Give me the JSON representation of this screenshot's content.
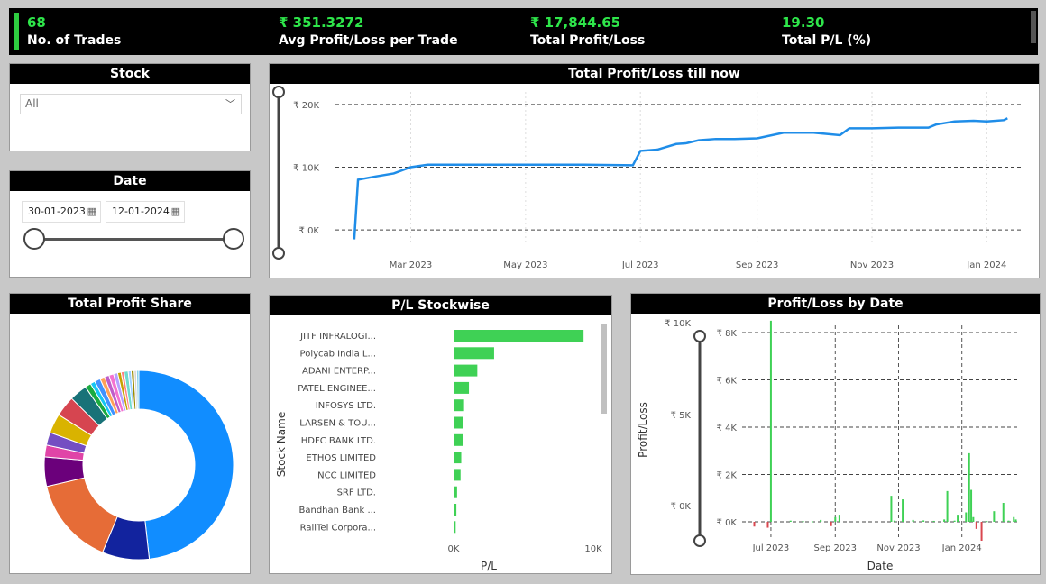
{
  "kpis": [
    {
      "value": "68",
      "label": "No. of Trades"
    },
    {
      "value": "₹ 351.3272",
      "label": "Avg Profit/Loss per Trade"
    },
    {
      "value": "₹ 17,844.65",
      "label": "Total Profit/Loss"
    },
    {
      "value": "19.30",
      "label": "Total P/L (%)"
    }
  ],
  "stock_filter": {
    "title": "Stock",
    "selected": "All"
  },
  "date_filter": {
    "title": "Date",
    "start": "30-01-2023",
    "end": "12-01-2024"
  },
  "colors": {
    "accent_green": "#2ee64a",
    "line_blue": "#1f8de8",
    "bar_green": "#3fd155",
    "loss_red": "#d9474f"
  },
  "chart_data": [
    {
      "type": "line",
      "title": "Total Profit/Loss till now",
      "x_ticks": [
        "Mar 2023",
        "May 2023",
        "Jul 2023",
        "Sep 2023",
        "Nov 2023",
        "Jan 2024"
      ],
      "y_ticks": [
        "₹ 20K",
        "₹ 10K",
        "₹ 0K"
      ],
      "ylim": [
        -2000,
        22000
      ],
      "grid": true,
      "series": [
        {
          "x": [
            "2023-01-30",
            "2023-02-01",
            "2023-02-10",
            "2023-02-20",
            "2023-03-01",
            "2023-03-10",
            "2023-04-01",
            "2023-05-01",
            "2023-06-01",
            "2023-06-27",
            "2023-07-01",
            "2023-07-10",
            "2023-07-20",
            "2023-07-25",
            "2023-08-01",
            "2023-08-10",
            "2023-08-20",
            "2023-09-01",
            "2023-09-15",
            "2023-10-01",
            "2023-10-15",
            "2023-10-20",
            "2023-11-01",
            "2023-11-15",
            "2023-12-01",
            "2023-12-05",
            "2023-12-15",
            "2023-12-25",
            "2024-01-01",
            "2024-01-10",
            "2024-01-12"
          ],
          "y": [
            -1500,
            8000,
            8500,
            9000,
            10000,
            10400,
            10400,
            10400,
            10400,
            10300,
            12600,
            12800,
            13700,
            13800,
            14300,
            14500,
            14500,
            14600,
            15500,
            15500,
            15100,
            16200,
            16200,
            16300,
            16300,
            16800,
            17300,
            17400,
            17300,
            17500,
            17800
          ]
        }
      ]
    },
    {
      "type": "pie",
      "title": "Total Profit Share",
      "values": [
        48,
        8,
        15,
        5,
        2,
        2.2,
        3.3,
        3.5,
        3,
        1,
        0.8,
        1,
        0.8,
        0.8,
        0.8,
        0.7,
        0.6,
        0.5,
        0.7,
        0.5,
        0.5,
        0.4,
        0.4
      ],
      "colors": [
        "#118dff",
        "#12239e",
        "#e66c37",
        "#6b007b",
        "#e044a7",
        "#744ec2",
        "#d9b300",
        "#d64550",
        "#197278",
        "#1aab40",
        "#15c6f4",
        "#4092ff",
        "#ffa058",
        "#be5dc9",
        "#f472d0",
        "#b5a1ff",
        "#c4a200",
        "#ff8080",
        "#6fdbcd",
        "#a0d1ff",
        "#9b8b00",
        "#d4d4d4",
        "#8ad4eb"
      ]
    },
    {
      "type": "bar",
      "title": "P/L Stockwise",
      "categories": [
        "JITF INFRALOGI...",
        "Polycab India L...",
        "ADANI ENTERP...",
        "PATEL ENGINEE...",
        "INFOSYS LTD.",
        "LARSEN & TOU...",
        "HDFC BANK LTD.",
        "ETHOS LIMITED",
        "NCC LIMITED",
        "SRF LTD.",
        "Bandhan Bank ...",
        "RailTel Corpora..."
      ],
      "values": [
        9300,
        2900,
        1700,
        1100,
        750,
        700,
        650,
        550,
        500,
        250,
        200,
        150
      ],
      "xlabel": "P/L",
      "ylabel": "Stock Name",
      "x_ticks": [
        "0K",
        "10K"
      ],
      "xlim": [
        0,
        10000
      ]
    },
    {
      "type": "bar",
      "title": "Profit/Loss by Date",
      "xlabel": "Date",
      "ylabel": "Profit/Loss",
      "x_ticks": [
        "Jul 2023",
        "Sep 2023",
        "Nov 2023",
        "Jan 2024"
      ],
      "y_ticks": [
        "₹ 8K",
        "₹ 6K",
        "₹ 4K",
        "₹ 2K",
        "₹ 0K"
      ],
      "slider_ticks": [
        "₹ 10K",
        "₹ 5K",
        "₹ 0K"
      ],
      "ylim": [
        -800,
        8500
      ],
      "x": [
        "2023-06-15",
        "2023-06-28",
        "2023-07-01",
        "2023-07-20",
        "2023-08-01",
        "2023-08-10",
        "2023-08-18",
        "2023-08-28",
        "2023-09-01",
        "2023-09-05",
        "2023-10-25",
        "2023-10-28",
        "2023-11-05",
        "2023-11-15",
        "2023-11-25",
        "2023-12-05",
        "2023-12-15",
        "2023-12-18",
        "2023-12-25",
        "2023-12-28",
        "2024-01-05",
        "2024-01-08",
        "2024-01-10",
        "2024-01-12",
        "2024-01-15",
        "2024-01-20",
        "2024-01-25",
        "2024-02-01",
        "2024-02-10",
        "2024-02-15",
        "2024-02-20",
        "2024-02-22"
      ],
      "values": [
        -200,
        -250,
        8500,
        50,
        30,
        20,
        80,
        -180,
        200,
        300,
        1100,
        50,
        950,
        80,
        60,
        40,
        100,
        1300,
        50,
        300,
        400,
        2900,
        1350,
        200,
        -300,
        -800,
        30,
        450,
        800,
        50,
        200,
        100
      ]
    }
  ]
}
